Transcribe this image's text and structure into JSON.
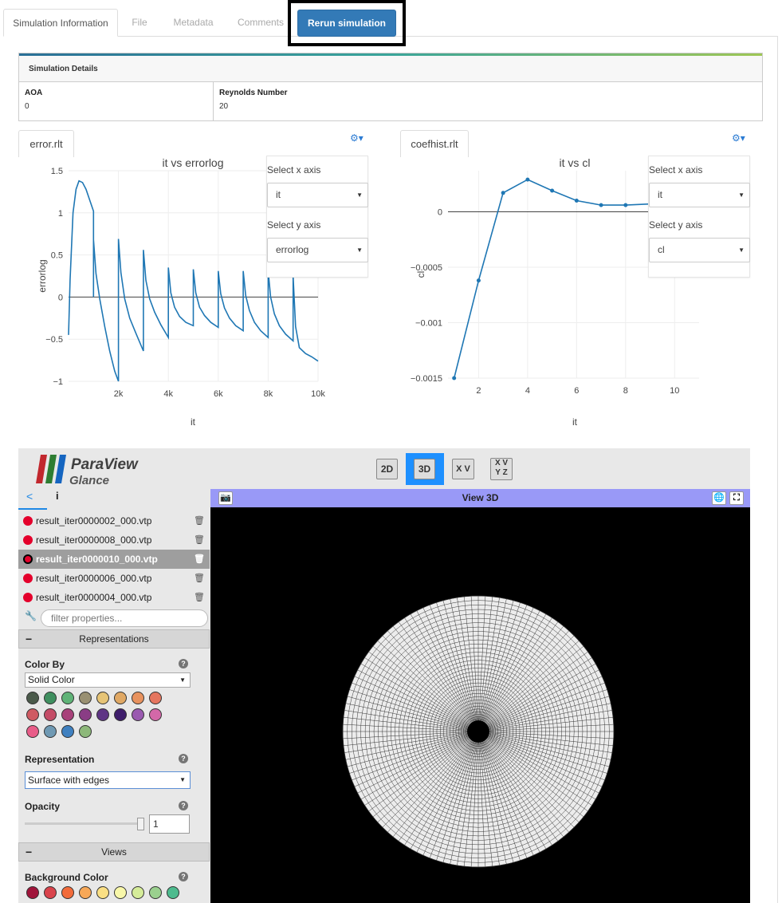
{
  "tabs": [
    {
      "label": "Simulation Information",
      "active": true
    },
    {
      "label": "File"
    },
    {
      "label": "Metadata"
    },
    {
      "label": "Comments"
    }
  ],
  "rerun_button": "Rerun simulation",
  "details": {
    "header": "Simulation Details",
    "fields": [
      {
        "key": "AOA",
        "value": "0"
      },
      {
        "key": "Reynolds Number",
        "value": "20"
      }
    ]
  },
  "charts": [
    {
      "tab": "error.rlt"
    },
    {
      "tab": "coefhist.rlt"
    }
  ],
  "axis_controls": {
    "x_label": "Select x axis",
    "y_label": "Select y axis",
    "left_x": "it",
    "left_y": "errorlog",
    "right_x": "it",
    "right_y": "cl"
  },
  "chart_data": [
    {
      "type": "line",
      "title": "it vs errorlog",
      "xlabel": "it",
      "ylabel": "errorlog",
      "xlim": [
        0,
        10000
      ],
      "ylim": [
        -1,
        1.5
      ],
      "x_ticks": [
        "2k",
        "4k",
        "6k",
        "8k",
        "10k"
      ],
      "y_ticks": [
        "1.5",
        "1",
        "0.5",
        "0",
        "−0.5",
        "−1"
      ],
      "color": "#1f77b4",
      "points": [
        [
          0,
          -0.45
        ],
        [
          60,
          0.2
        ],
        [
          180,
          1.0
        ],
        [
          300,
          1.28
        ],
        [
          420,
          1.38
        ],
        [
          560,
          1.36
        ],
        [
          700,
          1.28
        ],
        [
          850,
          1.15
        ],
        [
          1000,
          1.02
        ],
        [
          1000,
          0.0
        ],
        [
          1000,
          0.68
        ],
        [
          1100,
          0.28
        ],
        [
          1250,
          -0.02
        ],
        [
          1450,
          -0.35
        ],
        [
          1650,
          -0.64
        ],
        [
          1850,
          -0.88
        ],
        [
          2000,
          -1.0
        ],
        [
          2000,
          0.69
        ],
        [
          2100,
          0.29
        ],
        [
          2250,
          -0.02
        ],
        [
          2450,
          -0.25
        ],
        [
          2700,
          -0.43
        ],
        [
          3000,
          -0.64
        ],
        [
          3000,
          0.56
        ],
        [
          3100,
          0.2
        ],
        [
          3250,
          -0.02
        ],
        [
          3450,
          -0.18
        ],
        [
          3700,
          -0.33
        ],
        [
          4000,
          -0.48
        ],
        [
          4000,
          0.35
        ],
        [
          4100,
          0.05
        ],
        [
          4250,
          -0.12
        ],
        [
          4450,
          -0.23
        ],
        [
          4700,
          -0.3
        ],
        [
          5000,
          -0.34
        ],
        [
          5000,
          0.33
        ],
        [
          5100,
          0.05
        ],
        [
          5250,
          -0.12
        ],
        [
          5450,
          -0.22
        ],
        [
          5700,
          -0.3
        ],
        [
          6000,
          -0.36
        ],
        [
          6000,
          0.31
        ],
        [
          6100,
          0.04
        ],
        [
          6250,
          -0.13
        ],
        [
          6450,
          -0.25
        ],
        [
          6700,
          -0.34
        ],
        [
          7000,
          -0.4
        ],
        [
          7000,
          0.31
        ],
        [
          7100,
          0.02
        ],
        [
          7250,
          -0.16
        ],
        [
          7450,
          -0.3
        ],
        [
          7700,
          -0.4
        ],
        [
          8000,
          -0.48
        ],
        [
          8000,
          0.31
        ],
        [
          8100,
          0.0
        ],
        [
          8250,
          -0.2
        ],
        [
          8450,
          -0.34
        ],
        [
          8700,
          -0.44
        ],
        [
          9000,
          -0.52
        ],
        [
          9000,
          0.25
        ],
        [
          9100,
          -0.35
        ],
        [
          9250,
          -0.6
        ],
        [
          9500,
          -0.67
        ],
        [
          9750,
          -0.71
        ],
        [
          10000,
          -0.76
        ]
      ]
    },
    {
      "type": "line",
      "title": "it vs cl",
      "xlabel": "it",
      "ylabel": "cl",
      "xlim": [
        0,
        10
      ],
      "ylim": [
        -0.0015,
        0.0003
      ],
      "x_ticks": [
        "2",
        "4",
        "6",
        "8",
        "10"
      ],
      "y_ticks": [
        "0",
        "−0.0005",
        "−0.001",
        "−0.0015"
      ],
      "color": "#1f77b4",
      "x": [
        1,
        2,
        3,
        4,
        5,
        6,
        7,
        8,
        9
      ],
      "y": [
        -0.0015,
        -0.00062,
        0.00017,
        0.00029,
        0.00019,
        0.0001,
        6e-05,
        6e-05,
        7e-05
      ]
    }
  ],
  "paraview": {
    "logo_title": "ParaView",
    "logo_sub": "Glance",
    "view_buttons": [
      "2D",
      "3D"
    ],
    "axis_btn_xv": "X V",
    "axis_btn_xyz": "X V\nY Z",
    "info_icon": "i",
    "files": [
      {
        "name": "result_iter0000002_000.vtp",
        "selected": false
      },
      {
        "name": "result_iter0000008_000.vtp",
        "selected": false
      },
      {
        "name": "result_iter0000010_000.vtp",
        "selected": true
      },
      {
        "name": "result_iter0000006_000.vtp",
        "selected": false
      },
      {
        "name": "result_iter0000004_000.vtp",
        "selected": false
      }
    ],
    "filter_placeholder": "filter properties...",
    "section_representations": "Representations",
    "color_by_label": "Color By",
    "color_by_value": "Solid Color",
    "color_swatches": [
      "#4a5a4a",
      "#3f8f5f",
      "#5fb377",
      "#999072",
      "#e6c476",
      "#e0a864",
      "#e8925e",
      "#e5765f",
      "#cf5a62",
      "#c44c66",
      "#a8417a",
      "#8a3d85",
      "#5f3585",
      "#3e1d6b",
      "#9a5ab0",
      "#d368a8",
      "#e85c88",
      "#6f99b3",
      "#3f80c0",
      "#8db87a"
    ],
    "representation_label": "Representation",
    "representation_value": "Surface with edges",
    "opacity_label": "Opacity",
    "opacity_value": "1",
    "section_views": "Views",
    "background_label": "Background Color",
    "background_swatches": [
      "#a0143a",
      "#d9434b",
      "#f26b3a",
      "#f7a858",
      "#fadf84",
      "#f8f7a9",
      "#d5ec99",
      "#9ad08e",
      "#4dbb8e"
    ],
    "view_title": "View 3D",
    "help_glyph": "?"
  }
}
